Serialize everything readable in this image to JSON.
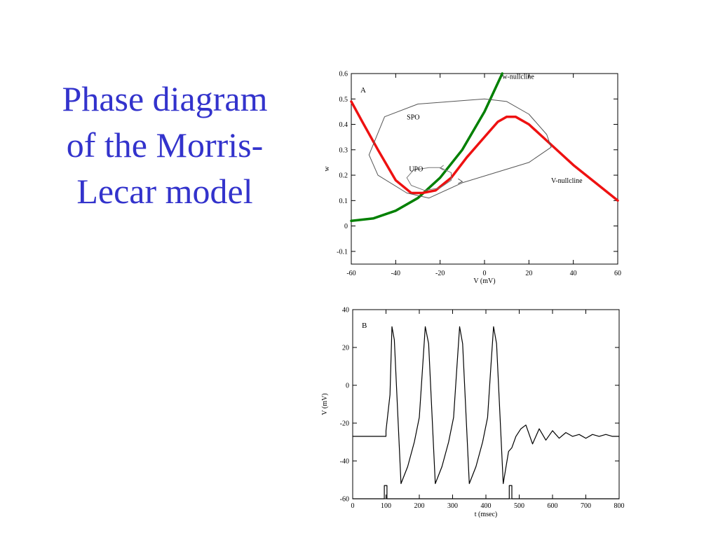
{
  "slide": {
    "title_lines": [
      "Phase diagram",
      "of the Morris-",
      "Lecar model"
    ],
    "title_color": "#3333cc"
  },
  "chart_data": [
    {
      "type": "line",
      "panel_label": "A",
      "xlabel": "V (mV)",
      "ylabel": "w",
      "xlim": [
        -60,
        60
      ],
      "ylim": [
        -0.15,
        0.6
      ],
      "xticks": [
        "-60",
        "-40",
        "-20",
        "0",
        "20",
        "40",
        "60"
      ],
      "xtick_values": [
        -60,
        -40,
        -20,
        0,
        20,
        40,
        60
      ],
      "yticks": [
        "0.6",
        "0.5",
        "0.4",
        "0.3",
        "0.2",
        "0.1",
        "0",
        "-0.1"
      ],
      "ytick_values": [
        0.6,
        0.5,
        0.4,
        0.3,
        0.2,
        0.1,
        0,
        -0.1
      ],
      "annotations": [
        "w-nullcline",
        "SPO",
        "UPO",
        "V-nullcline"
      ],
      "series": [
        {
          "name": "w-nullcline",
          "color": "#008000",
          "x": [
            -60,
            -50,
            -40,
            -30,
            -20,
            -10,
            0,
            8
          ],
          "y": [
            0.02,
            0.03,
            0.06,
            0.11,
            0.19,
            0.3,
            0.45,
            0.6
          ]
        },
        {
          "name": "V-nullcline",
          "color": "#ee1111",
          "x": [
            -60,
            -55,
            -48,
            -40,
            -33,
            -28,
            -22,
            -15,
            -8,
            -3,
            2,
            6,
            10,
            14,
            20,
            30,
            40,
            50,
            60
          ],
          "y": [
            0.49,
            0.41,
            0.3,
            0.18,
            0.13,
            0.13,
            0.14,
            0.19,
            0.27,
            0.32,
            0.37,
            0.41,
            0.43,
            0.43,
            0.4,
            0.32,
            0.24,
            0.17,
            0.1
          ]
        },
        {
          "name": "SPO",
          "color": "#555555",
          "x": [
            -52,
            -45,
            -30,
            -15,
            0,
            10,
            20,
            28,
            30,
            20,
            5,
            -10,
            -25,
            -35,
            -48,
            -52
          ],
          "y": [
            0.28,
            0.43,
            0.48,
            0.49,
            0.5,
            0.49,
            0.44,
            0.36,
            0.31,
            0.25,
            0.21,
            0.17,
            0.11,
            0.13,
            0.2,
            0.28
          ]
        },
        {
          "name": "UPO",
          "color": "#777777",
          "x": [
            -35,
            -32,
            -25,
            -20,
            -15,
            -15,
            -20,
            -27,
            -33,
            -35
          ],
          "y": [
            0.19,
            0.22,
            0.23,
            0.23,
            0.21,
            0.18,
            0.15,
            0.14,
            0.16,
            0.19
          ]
        }
      ]
    },
    {
      "type": "line",
      "panel_label": "B",
      "xlabel": "t (msec)",
      "ylabel": "V (mV)",
      "xlim": [
        0,
        800
      ],
      "ylim": [
        -60,
        40
      ],
      "xticks": [
        "0",
        "100",
        "200",
        "300",
        "400",
        "500",
        "600",
        "700",
        "800"
      ],
      "xtick_values": [
        0,
        100,
        200,
        300,
        400,
        500,
        600,
        700,
        800
      ],
      "yticks": [
        "40",
        "20",
        "0",
        "-20",
        "-40",
        "-60"
      ],
      "ytick_values": [
        40,
        20,
        0,
        -20,
        -40,
        -60
      ],
      "series": [
        {
          "name": "",
          "color": "#000000",
          "x": [
            0,
            100,
            100,
            112,
            118,
            125,
            145,
            165,
            185,
            200,
            210,
            218,
            228,
            248,
            268,
            288,
            303,
            313,
            321,
            330,
            350,
            370,
            390,
            405,
            415,
            423,
            432,
            452,
            468,
            478,
            490,
            505,
            520,
            540,
            560,
            580,
            600,
            620,
            640,
            660,
            680,
            700,
            720,
            740,
            760,
            780,
            800
          ],
          "y": [
            -27,
            -27,
            -24,
            -5,
            31,
            24,
            -52,
            -43,
            -30,
            -17,
            10,
            31,
            22,
            -52,
            -43,
            -30,
            -17,
            10,
            31,
            22,
            -52,
            -43,
            -30,
            -17,
            10,
            31,
            22,
            -52,
            -35,
            -33,
            -27,
            -23,
            -21,
            -31,
            -23,
            -29,
            -24,
            -28,
            -25,
            -27,
            -26,
            -28,
            -26,
            -27,
            -26,
            -27,
            -27
          ]
        },
        {
          "name": "",
          "color": "#000000",
          "x": [
            0,
            95,
            95,
            103,
            103,
            470,
            470,
            478,
            478,
            800
          ],
          "y": [
            -60,
            -60,
            -53,
            -53,
            -60,
            -60,
            -53,
            -53,
            -60,
            -60
          ]
        }
      ]
    }
  ]
}
